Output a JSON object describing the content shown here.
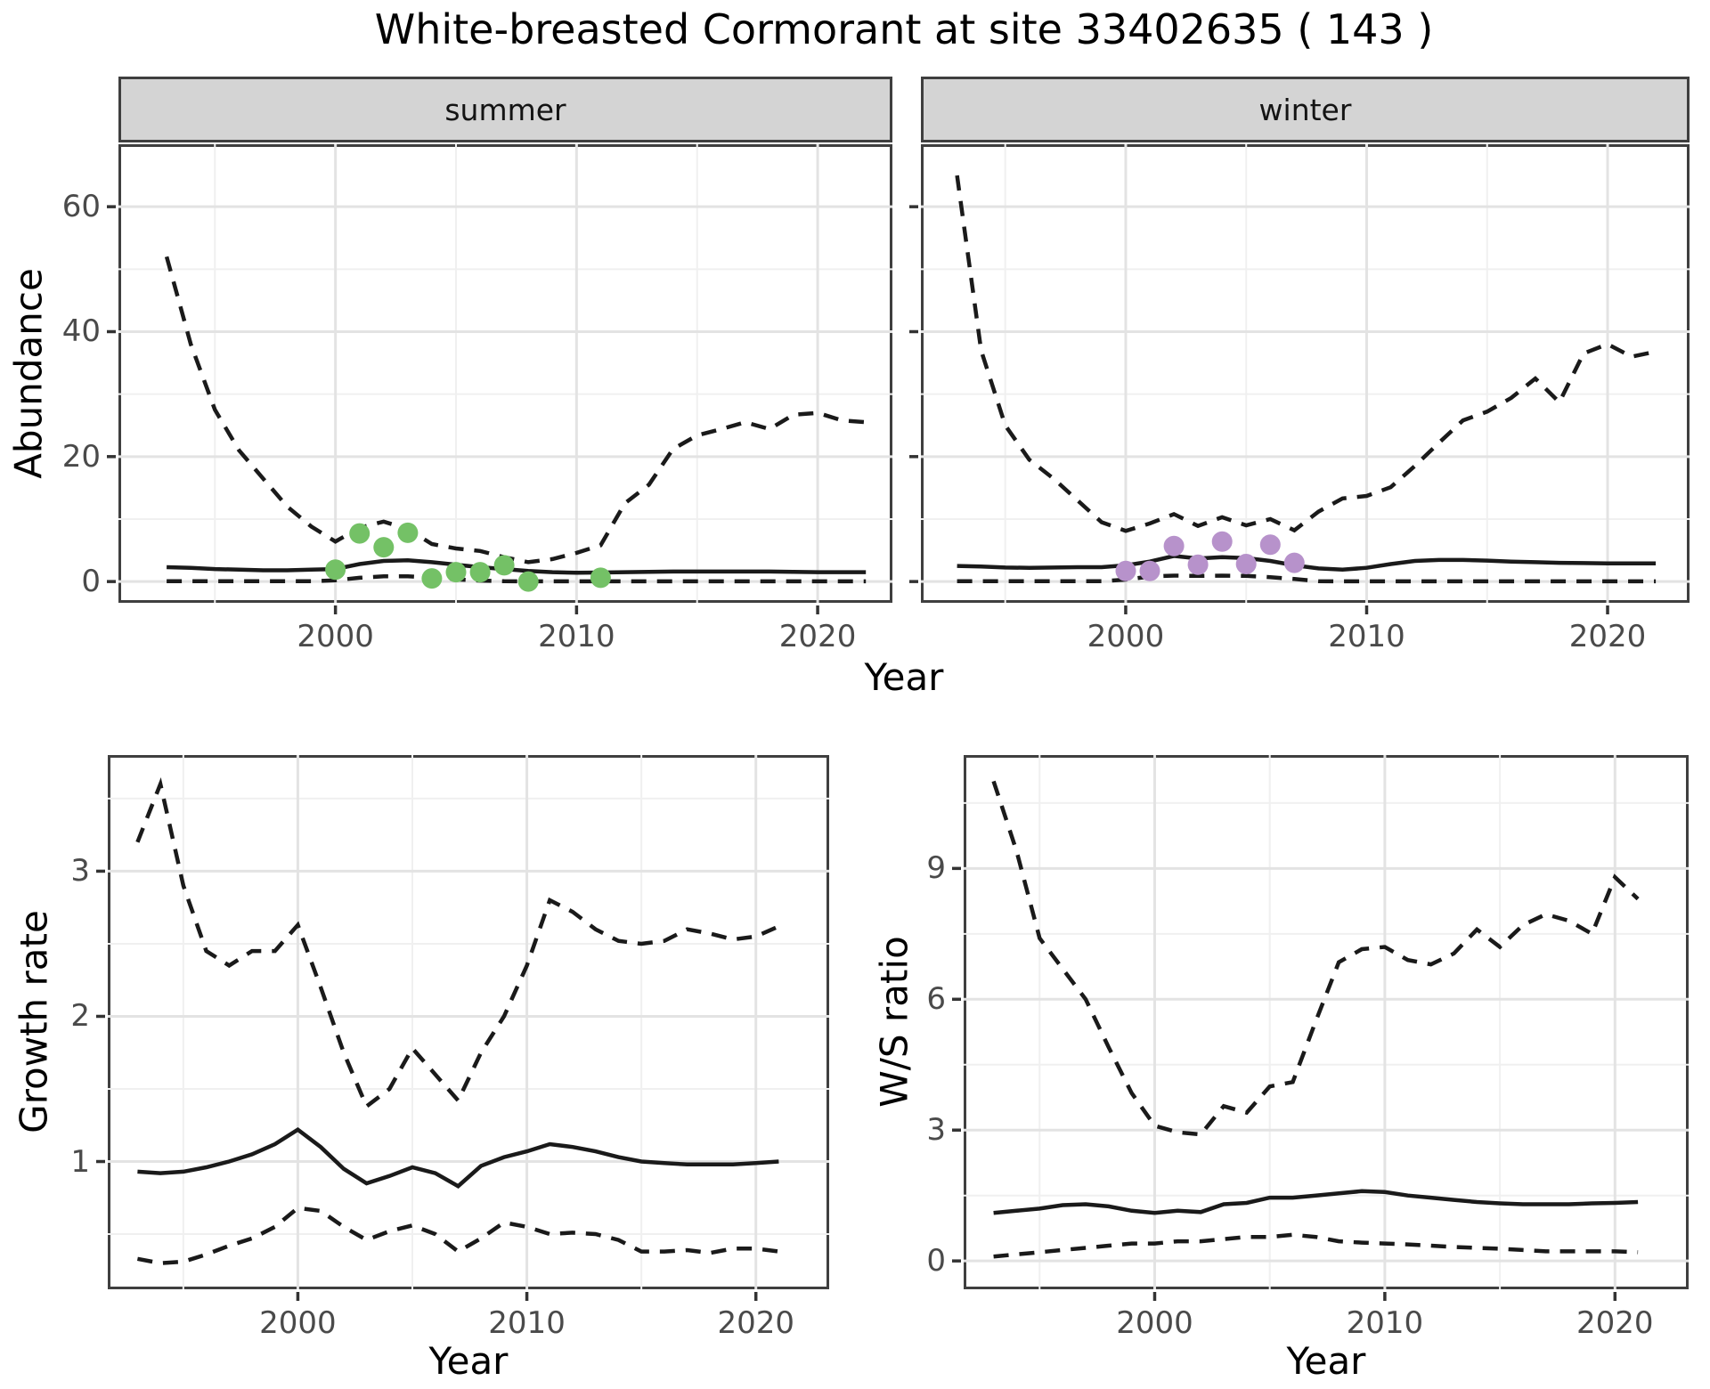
{
  "title": "White-breasted Cormorant at site 33402635 ( 143 )",
  "top_row": {
    "facets": [
      "summer",
      "winter"
    ],
    "ylabel": "Abundance",
    "xlabel": "Year"
  },
  "colors": {
    "line": "#1a1a1a",
    "grid_major": "#e3e3e3",
    "grid_minor": "#f0f0f0",
    "panel_border": "#3f3f3f",
    "strip_bg": "#d4d4d4",
    "tick_text": "#4a4a4a",
    "summer_point": "#74c166",
    "winter_point": "#b792cb"
  },
  "chart_data": [
    {
      "type": "line",
      "facet": "summer",
      "ylabel": "Abundance",
      "xlabel": "Year",
      "years": [
        1993,
        1994,
        1995,
        1996,
        1997,
        1998,
        1999,
        2000,
        2001,
        2002,
        2003,
        2004,
        2005,
        2006,
        2007,
        2008,
        2009,
        2010,
        2011,
        2012,
        2013,
        2014,
        2015,
        2016,
        2017,
        2018,
        2019,
        2020,
        2021,
        2022
      ],
      "xticks": [
        2000,
        2010,
        2020
      ],
      "xticks_minor": [
        1995,
        2005,
        2015
      ],
      "yticks": [
        0,
        20,
        40,
        60
      ],
      "yticks_minor": [
        10,
        30,
        50
      ],
      "xlim": [
        1991.0,
        2023.1
      ],
      "ylim": [
        -3.4,
        70
      ],
      "grid": true,
      "series": [
        {
          "name": "upper-ci",
          "style": "dashed",
          "values": [
            52,
            38,
            27.5,
            21,
            16.5,
            12,
            8.8,
            6.4,
            8.6,
            9.6,
            8.4,
            6.0,
            5.3,
            4.9,
            3.9,
            3.1,
            3.6,
            4.6,
            5.8,
            12.5,
            15.5,
            21.2,
            23.4,
            24.4,
            25.5,
            24.4,
            26.7,
            27,
            25.8,
            25.5
          ]
        },
        {
          "name": "estimate",
          "style": "solid",
          "values": [
            2.3,
            2.2,
            2.0,
            1.9,
            1.8,
            1.8,
            1.9,
            2.0,
            2.8,
            3.3,
            3.4,
            3.1,
            2.7,
            2.3,
            2.0,
            1.7,
            1.5,
            1.4,
            1.45,
            1.5,
            1.55,
            1.6,
            1.6,
            1.6,
            1.6,
            1.6,
            1.55,
            1.5,
            1.5,
            1.5
          ]
        },
        {
          "name": "lower-ci",
          "style": "dashed",
          "values": [
            0.05,
            0.05,
            0.05,
            0.05,
            0.05,
            0.05,
            0.05,
            0.2,
            0.6,
            0.85,
            0.85,
            0.6,
            0.35,
            0.15,
            0.05,
            0.03,
            0.03,
            0.03,
            0.03,
            0.03,
            0.03,
            0.03,
            0.03,
            0.03,
            0.03,
            0.03,
            0.03,
            0.03,
            0.03,
            0.03
          ]
        }
      ],
      "points": {
        "name": "summer-observations",
        "color": "#74c166",
        "x": [
          2000,
          2001,
          2002,
          2003,
          2004,
          2005,
          2006,
          2007,
          2008,
          2011
        ],
        "y": [
          1.9,
          7.7,
          5.5,
          7.8,
          0.5,
          1.5,
          1.5,
          2.6,
          0.0,
          0.6
        ]
      }
    },
    {
      "type": "line",
      "facet": "winter",
      "ylabel": "Abundance",
      "xlabel": "Year",
      "years": [
        1993,
        1994,
        1995,
        1996,
        1997,
        1998,
        1999,
        2000,
        2001,
        2002,
        2003,
        2004,
        2005,
        2006,
        2007,
        2008,
        2009,
        2010,
        2011,
        2012,
        2013,
        2014,
        2015,
        2016,
        2017,
        2018,
        2019,
        2020,
        2021,
        2022
      ],
      "xticks": [
        2000,
        2010,
        2020
      ],
      "xticks_minor": [
        1995,
        2005,
        2015
      ],
      "yticks": [
        0,
        20,
        40,
        60
      ],
      "yticks_minor": [
        10,
        30,
        50
      ],
      "xlim": [
        1991.5,
        2023.4
      ],
      "ylim": [
        -3.4,
        70
      ],
      "grid": true,
      "series": [
        {
          "name": "upper-ci",
          "style": "dashed",
          "values": [
            65,
            37,
            25,
            19.5,
            16.5,
            13,
            9.5,
            8.1,
            9.3,
            10.8,
            8.9,
            10.3,
            9.0,
            10.0,
            8.2,
            11.2,
            13.3,
            13.7,
            15.1,
            18.5,
            22.2,
            25.8,
            27.2,
            29.4,
            32.5,
            28.7,
            36.5,
            38,
            36,
            36.8
          ]
        },
        {
          "name": "estimate",
          "style": "solid",
          "values": [
            2.5,
            2.4,
            2.25,
            2.2,
            2.25,
            2.3,
            2.3,
            2.6,
            3.2,
            4.1,
            3.7,
            3.9,
            3.75,
            3.3,
            2.6,
            2.1,
            1.9,
            2.2,
            2.8,
            3.3,
            3.45,
            3.45,
            3.35,
            3.2,
            3.1,
            3.0,
            2.95,
            2.9,
            2.9,
            2.9
          ]
        },
        {
          "name": "lower-ci",
          "style": "dashed",
          "values": [
            0.05,
            0.05,
            0.05,
            0.05,
            0.05,
            0.05,
            0.05,
            0.3,
            0.8,
            0.95,
            0.9,
            0.95,
            0.9,
            0.7,
            0.4,
            0.05,
            0.03,
            0.03,
            0.03,
            0.03,
            0.03,
            0.03,
            0.03,
            0.03,
            0.03,
            0.03,
            0.03,
            0.03,
            0.03,
            0.03
          ]
        }
      ],
      "points": {
        "name": "winter-observations",
        "color": "#b792cb",
        "x": [
          2000,
          2001,
          2002,
          2003,
          2004,
          2005,
          2006,
          2007
        ],
        "y": [
          1.7,
          1.7,
          5.7,
          2.7,
          6.4,
          2.8,
          5.9,
          3.0
        ]
      }
    },
    {
      "type": "line",
      "facet": "",
      "ylabel": "Growth rate",
      "xlabel": "Year",
      "years": [
        1993,
        1994,
        1995,
        1996,
        1997,
        1998,
        1999,
        2000,
        2001,
        2002,
        2003,
        2004,
        2005,
        2006,
        2007,
        2008,
        2009,
        2010,
        2011,
        2012,
        2013,
        2014,
        2015,
        2016,
        2017,
        2018,
        2019,
        2020,
        2021
      ],
      "xticks": [
        2000,
        2010,
        2020
      ],
      "xticks_minor": [
        1995,
        2005,
        2015
      ],
      "yticks": [
        1,
        2,
        3
      ],
      "yticks_minor": [
        0.5,
        1.5,
        2.5,
        3.5
      ],
      "xlim": [
        1991.7,
        2023.2
      ],
      "ylim": [
        0.12,
        3.8
      ],
      "grid": true,
      "series": [
        {
          "name": "upper-ci",
          "style": "dashed",
          "values": [
            3.2,
            3.6,
            2.9,
            2.45,
            2.35,
            2.45,
            2.45,
            2.63,
            2.2,
            1.75,
            1.38,
            1.5,
            1.78,
            1.6,
            1.42,
            1.75,
            2.0,
            2.35,
            2.8,
            2.72,
            2.6,
            2.52,
            2.5,
            2.52,
            2.6,
            2.57,
            2.53,
            2.55,
            2.62
          ]
        },
        {
          "name": "estimate",
          "style": "solid",
          "values": [
            0.93,
            0.92,
            0.93,
            0.96,
            1.0,
            1.05,
            1.12,
            1.22,
            1.1,
            0.95,
            0.85,
            0.9,
            0.96,
            0.92,
            0.83,
            0.97,
            1.03,
            1.07,
            1.12,
            1.1,
            1.07,
            1.03,
            1.0,
            0.99,
            0.98,
            0.98,
            0.98,
            0.99,
            1.0
          ]
        },
        {
          "name": "lower-ci",
          "style": "dashed",
          "values": [
            0.33,
            0.3,
            0.31,
            0.36,
            0.42,
            0.47,
            0.55,
            0.68,
            0.66,
            0.55,
            0.46,
            0.52,
            0.56,
            0.5,
            0.38,
            0.47,
            0.58,
            0.55,
            0.5,
            0.51,
            0.5,
            0.46,
            0.38,
            0.38,
            0.39,
            0.37,
            0.4,
            0.4,
            0.38
          ]
        }
      ],
      "points": null
    },
    {
      "type": "line",
      "facet": "",
      "ylabel": "W/S ratio",
      "xlabel": "Year",
      "years": [
        1993,
        1994,
        1995,
        1996,
        1997,
        1998,
        1999,
        2000,
        2001,
        2002,
        2003,
        2004,
        2005,
        2006,
        2007,
        2008,
        2009,
        2010,
        2011,
        2012,
        2013,
        2014,
        2015,
        2016,
        2017,
        2018,
        2019,
        2020,
        2021
      ],
      "xticks": [
        2000,
        2010,
        2020
      ],
      "xticks_minor": [
        1995,
        2005,
        2015
      ],
      "yticks": [
        0,
        3,
        6,
        9
      ],
      "yticks_minor": [
        1.5,
        4.5,
        7.5,
        10.5
      ],
      "xlim": [
        1991.7,
        2023.2
      ],
      "ylim": [
        -0.65,
        11.6
      ],
      "grid": true,
      "series": [
        {
          "name": "upper-ci",
          "style": "dashed",
          "values": [
            11.0,
            9.4,
            7.4,
            6.7,
            6.0,
            4.9,
            3.85,
            3.1,
            2.95,
            2.9,
            3.55,
            3.4,
            4.0,
            4.1,
            5.5,
            6.85,
            7.15,
            7.2,
            6.9,
            6.8,
            7.05,
            7.6,
            7.2,
            7.7,
            7.95,
            7.8,
            7.5,
            8.8,
            8.3
          ]
        },
        {
          "name": "estimate",
          "style": "solid",
          "values": [
            1.1,
            1.15,
            1.2,
            1.28,
            1.3,
            1.25,
            1.15,
            1.1,
            1.15,
            1.12,
            1.3,
            1.33,
            1.45,
            1.45,
            1.5,
            1.55,
            1.6,
            1.58,
            1.5,
            1.45,
            1.4,
            1.35,
            1.32,
            1.3,
            1.3,
            1.3,
            1.32,
            1.33,
            1.35
          ]
        },
        {
          "name": "lower-ci",
          "style": "dashed",
          "values": [
            0.1,
            0.15,
            0.2,
            0.25,
            0.3,
            0.35,
            0.4,
            0.4,
            0.45,
            0.45,
            0.5,
            0.55,
            0.55,
            0.6,
            0.55,
            0.45,
            0.42,
            0.4,
            0.38,
            0.35,
            0.32,
            0.3,
            0.28,
            0.25,
            0.22,
            0.22,
            0.22,
            0.22,
            0.2
          ]
        }
      ],
      "points": null
    }
  ]
}
